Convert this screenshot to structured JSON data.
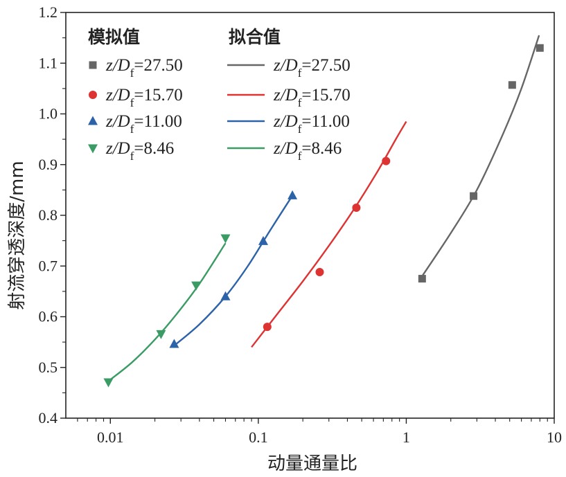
{
  "chart_data": {
    "type": "scatter",
    "title": "",
    "xlabel": "动量通量比",
    "ylabel": "射流穿透深度/mm",
    "xscale": "log",
    "xlim": [
      0.005,
      10
    ],
    "ylim": [
      0.4,
      1.2
    ],
    "grid": false,
    "x_ticks": [
      0.01,
      0.1,
      1,
      10
    ],
    "x_tick_labels": [
      "0.01",
      "0.1",
      "1",
      "10"
    ],
    "y_ticks": [
      0.4,
      0.5,
      0.6,
      0.7,
      0.8,
      0.9,
      1.0,
      1.1,
      1.2
    ],
    "y_tick_labels": [
      "0.4",
      "0.5",
      "0.6",
      "0.7",
      "0.8",
      "0.9",
      "1.0",
      "1.1",
      "1.2"
    ],
    "legend_position": "top-left",
    "legend": {
      "simulated_heading": "模拟值",
      "fitted_heading": "拟合值",
      "label_prefix": "z/D",
      "label_subscript": "f"
    },
    "series": [
      {
        "name": "z/Df=27.50",
        "ratio_label": "=27.50",
        "color": "#666666",
        "marker": "square",
        "points": [
          {
            "x": 1.28,
            "y": 0.675
          },
          {
            "x": 2.85,
            "y": 0.838
          },
          {
            "x": 5.2,
            "y": 1.057
          },
          {
            "x": 8.0,
            "y": 1.13
          }
        ],
        "fit": {
          "x": [
            1.28,
            2.0,
            3.0,
            4.5,
            6.0,
            7.9
          ],
          "y": [
            0.68,
            0.765,
            0.85,
            0.96,
            1.05,
            1.155
          ]
        }
      },
      {
        "name": "z/Df=15.70",
        "ratio_label": "=15.70",
        "color": "#dd3333",
        "marker": "circle",
        "points": [
          {
            "x": 0.115,
            "y": 0.58
          },
          {
            "x": 0.26,
            "y": 0.688
          },
          {
            "x": 0.46,
            "y": 0.815
          },
          {
            "x": 0.73,
            "y": 0.907
          }
        ],
        "fit": {
          "x": [
            0.09,
            0.13,
            0.2,
            0.3,
            0.45,
            0.65,
            0.85,
            1.0
          ],
          "y": [
            0.54,
            0.6,
            0.67,
            0.74,
            0.815,
            0.89,
            0.95,
            0.985
          ]
        }
      },
      {
        "name": "z/Df=11.00",
        "ratio_label": "=11.00",
        "color": "#2c63a8",
        "marker": "triangle-up",
        "points": [
          {
            "x": 0.027,
            "y": 0.546
          },
          {
            "x": 0.06,
            "y": 0.64
          },
          {
            "x": 0.108,
            "y": 0.749
          },
          {
            "x": 0.17,
            "y": 0.839
          }
        ],
        "fit": {
          "x": [
            0.027,
            0.04,
            0.06,
            0.085,
            0.12,
            0.165
          ],
          "y": [
            0.543,
            0.585,
            0.64,
            0.7,
            0.77,
            0.833
          ]
        }
      },
      {
        "name": "z/Df=8.46",
        "ratio_label": "=8.46",
        "color": "#3a9c64",
        "marker": "triangle-down",
        "points": [
          {
            "x": 0.0097,
            "y": 0.471
          },
          {
            "x": 0.022,
            "y": 0.566
          },
          {
            "x": 0.038,
            "y": 0.662
          },
          {
            "x": 0.06,
            "y": 0.755
          }
        ],
        "fit": {
          "x": [
            0.0097,
            0.014,
            0.02,
            0.028,
            0.04,
            0.06
          ],
          "y": [
            0.473,
            0.51,
            0.555,
            0.605,
            0.665,
            0.745
          ]
        }
      }
    ]
  }
}
